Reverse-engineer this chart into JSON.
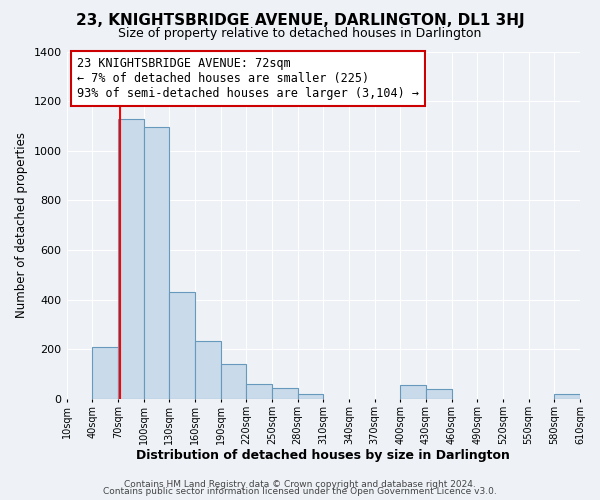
{
  "title": "23, KNIGHTSBRIDGE AVENUE, DARLINGTON, DL1 3HJ",
  "subtitle": "Size of property relative to detached houses in Darlington",
  "xlabel": "Distribution of detached houses by size in Darlington",
  "ylabel": "Number of detached properties",
  "bar_color": "#c9daea",
  "bar_edge_color": "#6699bb",
  "background_color": "#eef2f7",
  "grid_color": "#ffffff",
  "red_line_x": 72,
  "bin_edges": [
    10,
    40,
    70,
    100,
    130,
    160,
    190,
    220,
    250,
    280,
    310,
    340,
    370,
    400,
    430,
    460,
    490,
    520,
    550,
    580,
    610
  ],
  "bar_heights": [
    0,
    210,
    1130,
    1095,
    430,
    235,
    140,
    60,
    45,
    20,
    0,
    0,
    0,
    55,
    40,
    0,
    0,
    0,
    0,
    20
  ],
  "annotation_text": "23 KNIGHTSBRIDGE AVENUE: 72sqm\n← 7% of detached houses are smaller (225)\n93% of semi-detached houses are larger (3,104) →",
  "annotation_box_color": "#ffffff",
  "annotation_box_edge": "#cc0000",
  "ylim": [
    0,
    1400
  ],
  "footnote1": "Contains HM Land Registry data © Crown copyright and database right 2024.",
  "footnote2": "Contains public sector information licensed under the Open Government Licence v3.0."
}
